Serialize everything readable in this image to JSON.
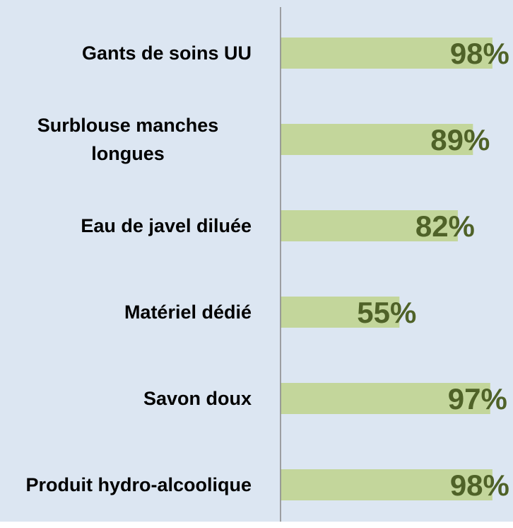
{
  "chart_data": {
    "type": "bar",
    "orientation": "horizontal",
    "categories": [
      "Gants de soins UU",
      "Surblouse manches longues",
      "Eau de javel diluée",
      "Matériel dédié",
      "Savon doux",
      "Produit hydro-alcoolique"
    ],
    "values": [
      98,
      89,
      82,
      55,
      97,
      98
    ],
    "value_labels": [
      "98%",
      "89%",
      "82%",
      "55%",
      "97%",
      "98%"
    ],
    "color": "#c3d69b",
    "label_color": "#4f6228",
    "background": "#dce6f2",
    "xlim": [
      0,
      100
    ]
  }
}
